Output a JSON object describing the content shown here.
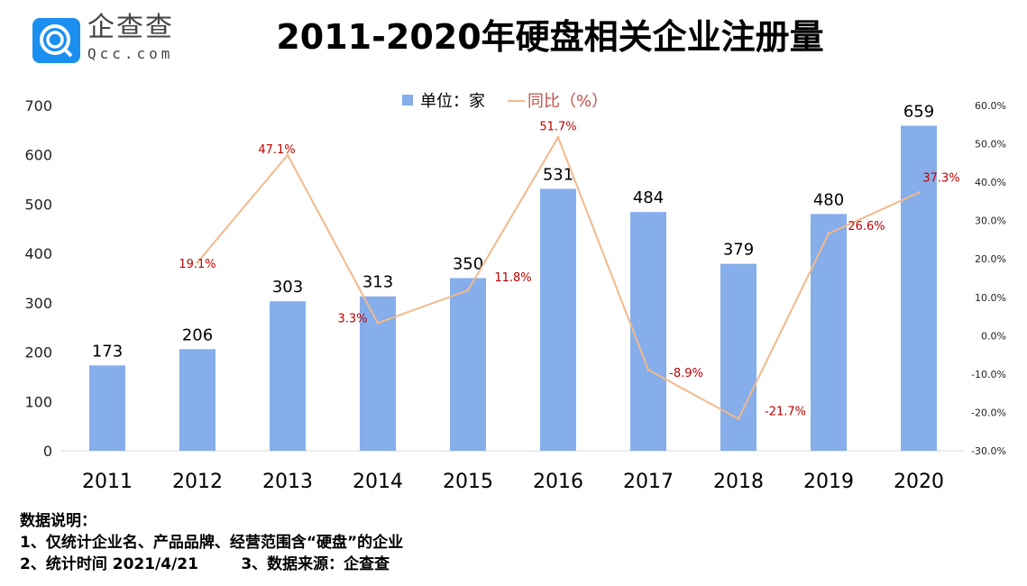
{
  "header": {
    "logo_text": "企查查",
    "logo_sub": "Qcc.com",
    "title": "2011-2020年硬盘相关企业注册量"
  },
  "notes": {
    "heading": "数据说明：",
    "line1": "1、仅统计企业名、产品品牌、经营范围含“硬盘”的企业",
    "line2": "2、统计时间 2021/4/21        3、数据来源：企查查"
  },
  "colors": {
    "bar": "#85aeea",
    "line": "#f2b98c",
    "line_label": "#c00000",
    "legend_line_text": "#c0504d"
  },
  "chart_data": {
    "type": "bar+line",
    "title": "2011-2020年硬盘相关企业注册量",
    "categories": [
      "2011",
      "2012",
      "2013",
      "2014",
      "2015",
      "2016",
      "2017",
      "2018",
      "2019",
      "2020"
    ],
    "series": [
      {
        "name": "单位：家",
        "type": "bar",
        "axis": "left",
        "values": [
          173,
          206,
          303,
          313,
          350,
          531,
          484,
          379,
          480,
          659
        ]
      },
      {
        "name": "同比（%）",
        "type": "line",
        "axis": "right",
        "values": [
          null,
          19.1,
          47.1,
          3.3,
          11.8,
          51.7,
          -8.9,
          -21.7,
          26.6,
          37.3
        ],
        "labels": [
          "",
          "19.1%",
          "47.1%",
          "3.3%",
          "11.8%",
          "51.7%",
          "-8.9%",
          "-21.7%",
          "26.6%",
          "37.3%"
        ]
      }
    ],
    "left_axis": {
      "range": [
        0,
        700
      ],
      "ticks": [
        "0",
        "100",
        "200",
        "300",
        "400",
        "500",
        "600",
        "700"
      ]
    },
    "right_axis": {
      "range": [
        -30,
        60
      ],
      "ticks": [
        "-30.0%",
        "-20.0%",
        "-10.0%",
        "0.0%",
        "10.0%",
        "20.0%",
        "30.0%",
        "40.0%",
        "50.0%",
        "60.0%"
      ]
    },
    "legend": {
      "position": "top",
      "bar_label": "单位：家",
      "line_label": "同比（%）"
    },
    "grid": false
  }
}
